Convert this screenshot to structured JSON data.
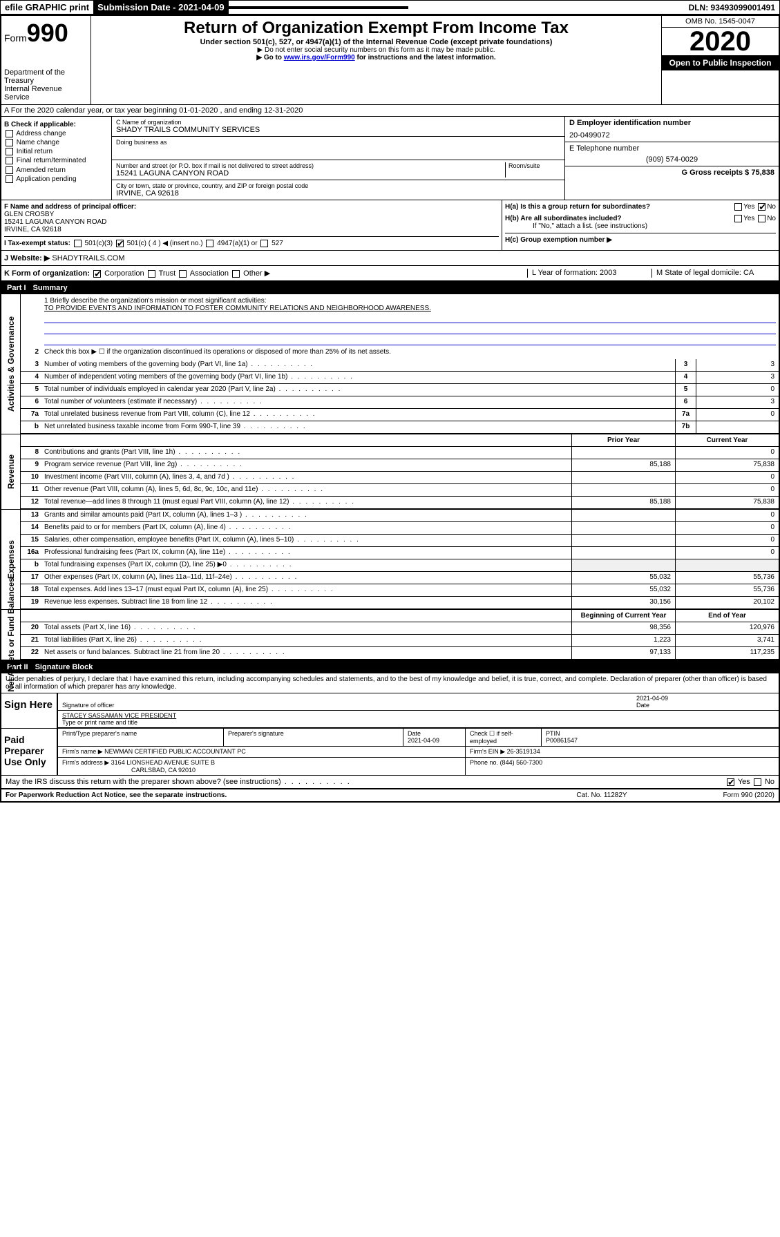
{
  "topbar": {
    "efile": "efile GRAPHIC print",
    "submission_label": "Submission Date - 2021-04-09",
    "dln": "DLN: 93493099001491"
  },
  "header": {
    "form_label": "Form",
    "form_number": "990",
    "dept1": "Department of the Treasury",
    "dept2": "Internal Revenue Service",
    "title": "Return of Organization Exempt From Income Tax",
    "subtitle": "Under section 501(c), 527, or 4947(a)(1) of the Internal Revenue Code (except private foundations)",
    "note1": "▶ Do not enter social security numbers on this form as it may be made public.",
    "note2_pre": "▶ Go to ",
    "note2_link": "www.irs.gov/Form990",
    "note2_post": " for instructions and the latest information.",
    "omb": "OMB No. 1545-0047",
    "year": "2020",
    "open": "Open to Public Inspection"
  },
  "row_a": "A For the 2020 calendar year, or tax year beginning 01-01-2020   , and ending 12-31-2020",
  "check_b": {
    "header": "B Check if applicable:",
    "items": [
      "Address change",
      "Name change",
      "Initial return",
      "Final return/terminated",
      "Amended return",
      "Application pending"
    ]
  },
  "c": {
    "name_label": "C Name of organization",
    "name": "SHADY TRAILS COMMUNITY SERVICES",
    "dba_label": "Doing business as",
    "addr_label": "Number and street (or P.O. box if mail is not delivered to street address)",
    "room_label": "Room/suite",
    "addr": "15241 LAGUNA CANYON ROAD",
    "city_label": "City or town, state or province, country, and ZIP or foreign postal code",
    "city": "IRVINE, CA  92618"
  },
  "d": {
    "label": "D Employer identification number",
    "val": "20-0499072"
  },
  "e": {
    "label": "E Telephone number",
    "val": "(909) 574-0029"
  },
  "g": {
    "label": "G Gross receipts $ 75,838"
  },
  "f": {
    "label": "F  Name and address of principal officer:",
    "name": "GLEN CROSBY",
    "addr1": "15241 LAGUNA CANYON ROAD",
    "addr2": "IRVINE, CA  92618"
  },
  "h": {
    "a": "H(a)  Is this a group return for subordinates?",
    "b": "H(b)  Are all subordinates included?",
    "b_note": "If \"No,\" attach a list. (see instructions)",
    "c": "H(c)  Group exemption number ▶",
    "yes": "Yes",
    "no": "No"
  },
  "i": {
    "label": "I  Tax-exempt status:",
    "opt1": "501(c)(3)",
    "opt2": "501(c) ( 4 ) ◀ (insert no.)",
    "opt3": "4947(a)(1) or",
    "opt4": "527"
  },
  "j": {
    "label": "J  Website: ▶",
    "val": "SHADYTRAILS.COM"
  },
  "k": {
    "label": "K Form of organization:",
    "corp": "Corporation",
    "trust": "Trust",
    "assoc": "Association",
    "other": "Other ▶"
  },
  "l": {
    "label": "L Year of formation: 2003"
  },
  "m": {
    "label": "M State of legal domicile: CA"
  },
  "part1": {
    "num": "Part I",
    "title": "Summary"
  },
  "summary": {
    "q1": "1  Briefly describe the organization's mission or most significant activities:",
    "q1_ans": "TO PROVIDE EVENTS AND INFORMATION TO FOSTER COMMUNITY RELATIONS AND NEIGHBORHOOD AWARENESS.",
    "q2": "Check this box ▶ ☐  if the organization discontinued its operations or disposed of more than 25% of its net assets.",
    "lines": [
      {
        "n": "3",
        "t": "Number of voting members of the governing body (Part VI, line 1a)",
        "box": "3",
        "v": "3"
      },
      {
        "n": "4",
        "t": "Number of independent voting members of the governing body (Part VI, line 1b)",
        "box": "4",
        "v": "3"
      },
      {
        "n": "5",
        "t": "Total number of individuals employed in calendar year 2020 (Part V, line 2a)",
        "box": "5",
        "v": "0"
      },
      {
        "n": "6",
        "t": "Total number of volunteers (estimate if necessary)",
        "box": "6",
        "v": "3"
      },
      {
        "n": "7a",
        "t": "Total unrelated business revenue from Part VIII, column (C), line 12",
        "box": "7a",
        "v": "0"
      },
      {
        "n": "b",
        "t": "Net unrelated business taxable income from Form 990-T, line 39",
        "box": "7b",
        "v": ""
      }
    ],
    "col_prior": "Prior Year",
    "col_current": "Current Year",
    "rev": [
      {
        "n": "8",
        "t": "Contributions and grants (Part VIII, line 1h)",
        "p": "",
        "c": "0"
      },
      {
        "n": "9",
        "t": "Program service revenue (Part VIII, line 2g)",
        "p": "85,188",
        "c": "75,838"
      },
      {
        "n": "10",
        "t": "Investment income (Part VIII, column (A), lines 3, 4, and 7d )",
        "p": "",
        "c": "0"
      },
      {
        "n": "11",
        "t": "Other revenue (Part VIII, column (A), lines 5, 6d, 8c, 9c, 10c, and 11e)",
        "p": "",
        "c": "0"
      },
      {
        "n": "12",
        "t": "Total revenue—add lines 8 through 11 (must equal Part VIII, column (A), line 12)",
        "p": "85,188",
        "c": "75,838"
      }
    ],
    "exp": [
      {
        "n": "13",
        "t": "Grants and similar amounts paid (Part IX, column (A), lines 1–3 )",
        "p": "",
        "c": "0"
      },
      {
        "n": "14",
        "t": "Benefits paid to or for members (Part IX, column (A), line 4)",
        "p": "",
        "c": "0"
      },
      {
        "n": "15",
        "t": "Salaries, other compensation, employee benefits (Part IX, column (A), lines 5–10)",
        "p": "",
        "c": "0"
      },
      {
        "n": "16a",
        "t": "Professional fundraising fees (Part IX, column (A), line 11e)",
        "p": "",
        "c": "0"
      },
      {
        "n": "b",
        "t": "Total fundraising expenses (Part IX, column (D), line 25) ▶0",
        "p": "__shade__",
        "c": "__shade__"
      },
      {
        "n": "17",
        "t": "Other expenses (Part IX, column (A), lines 11a–11d, 11f–24e)",
        "p": "55,032",
        "c": "55,736"
      },
      {
        "n": "18",
        "t": "Total expenses. Add lines 13–17 (must equal Part IX, column (A), line 25)",
        "p": "55,032",
        "c": "55,736"
      },
      {
        "n": "19",
        "t": "Revenue less expenses. Subtract line 18 from line 12",
        "p": "30,156",
        "c": "20,102"
      }
    ],
    "col_begin": "Beginning of Current Year",
    "col_end": "End of Year",
    "net": [
      {
        "n": "20",
        "t": "Total assets (Part X, line 16)",
        "p": "98,356",
        "c": "120,976"
      },
      {
        "n": "21",
        "t": "Total liabilities (Part X, line 26)",
        "p": "1,223",
        "c": "3,741"
      },
      {
        "n": "22",
        "t": "Net assets or fund balances. Subtract line 21 from line 20",
        "p": "97,133",
        "c": "117,235"
      }
    ]
  },
  "side_labels": {
    "gov": "Activities & Governance",
    "rev": "Revenue",
    "exp": "Expenses",
    "net": "Net Assets or Fund Balances"
  },
  "part2": {
    "num": "Part II",
    "title": "Signature Block"
  },
  "sig": {
    "perjury": "Under penalties of perjury, I declare that I have examined this return, including accompanying schedules and statements, and to the best of my knowledge and belief, it is true, correct, and complete. Declaration of preparer (other than officer) is based on all information of which preparer has any knowledge.",
    "sign_here": "Sign Here",
    "sig_officer": "Signature of officer",
    "date1": "2021-04-09",
    "date_label": "Date",
    "officer_name": "STACEY SASSAMAN  VICE PRESIDENT",
    "type_name": "Type or print name and title",
    "paid": "Paid Preparer Use Only",
    "prep_name_label": "Print/Type preparer's name",
    "prep_sig_label": "Preparer's signature",
    "prep_date": "2021-04-09",
    "check_self": "Check ☐ if self-employed",
    "ptin_label": "PTIN",
    "ptin": "P00861547",
    "firm_name_label": "Firm's name   ▶",
    "firm_name": "NEWMAN CERTIFIED PUBLIC ACCOUNTANT PC",
    "firm_ein_label": "Firm's EIN ▶",
    "firm_ein": "26-3519134",
    "firm_addr_label": "Firm's address ▶",
    "firm_addr1": "3164 LIONSHEAD AVENUE SUITE B",
    "firm_addr2": "CARLSBAD, CA  92010",
    "phone_label": "Phone no.",
    "phone": "(844) 560-7300",
    "discuss": "May the IRS discuss this return with the preparer shown above? (see instructions)"
  },
  "footer": {
    "pra": "For Paperwork Reduction Act Notice, see the separate instructions.",
    "cat": "Cat. No. 11282Y",
    "form": "Form 990 (2020)"
  }
}
